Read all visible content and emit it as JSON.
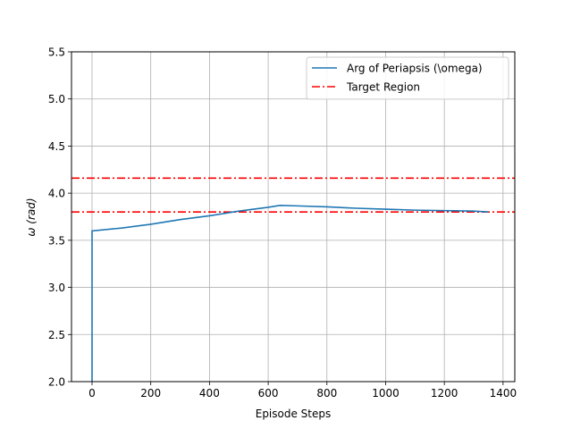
{
  "chart_data": {
    "type": "line",
    "title": "",
    "xlabel": "Episode Steps",
    "ylabel": "ω (rad)",
    "xlim": [
      -70,
      1440
    ],
    "ylim": [
      2.0,
      5.5
    ],
    "xticks": [
      0,
      200,
      400,
      600,
      800,
      1000,
      1200,
      1400
    ],
    "yticks": [
      2.0,
      2.5,
      3.0,
      3.5,
      4.0,
      4.5,
      5.0,
      5.5
    ],
    "grid": true,
    "legend_position": "top-right",
    "series": [
      {
        "name": "Arg of Periapsis (\\omega)",
        "color": "#1f77b4",
        "style": "solid",
        "x": [
          0,
          0,
          100,
          200,
          300,
          400,
          500,
          600,
          640,
          700,
          800,
          900,
          1000,
          1100,
          1200,
          1300,
          1350
        ],
        "y": [
          2.0,
          3.6,
          3.63,
          3.67,
          3.72,
          3.76,
          3.81,
          3.85,
          3.87,
          3.865,
          3.855,
          3.84,
          3.83,
          3.82,
          3.815,
          3.81,
          3.8
        ]
      },
      {
        "name": "Target Region",
        "color": "#ff0000",
        "style": "dashdot",
        "hlines": [
          4.16,
          3.8
        ]
      }
    ]
  }
}
